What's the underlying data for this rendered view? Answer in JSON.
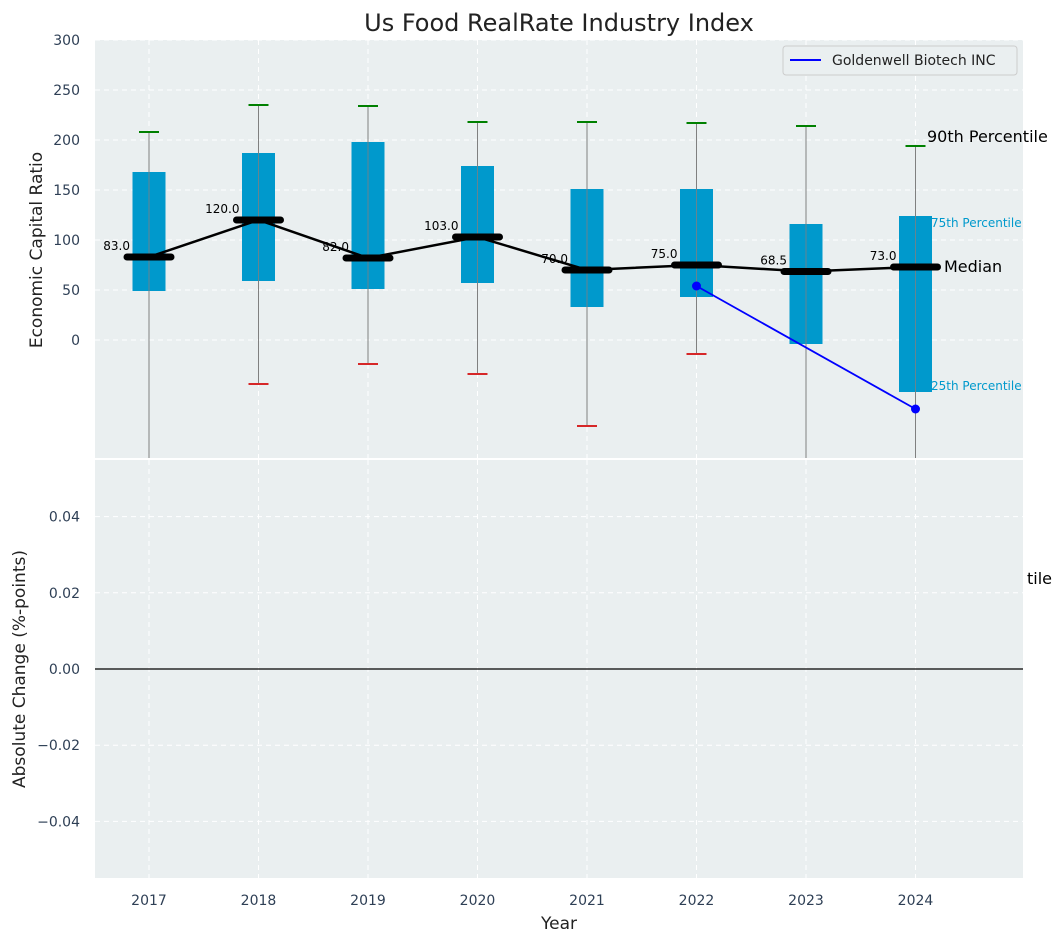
{
  "chart_data": [
    {
      "type": "box",
      "title": "Us Food RealRate Industry Index",
      "xlabel": "",
      "ylabel": "Economic Capital Ratio",
      "ylim": [
        -118,
        300
      ],
      "yticks": [
        0,
        50,
        100,
        150,
        200,
        250,
        300
      ],
      "grid": true,
      "categories": [
        "2017",
        "2018",
        "2019",
        "2020",
        "2021",
        "2022",
        "2023",
        "2024"
      ],
      "p10": [
        null,
        -44,
        -24,
        -34,
        -86,
        -14,
        null,
        null
      ],
      "p25": [
        49,
        59,
        51,
        57,
        33,
        43,
        -4,
        -52
      ],
      "median": [
        83.0,
        120.0,
        82.0,
        103.0,
        70.0,
        75.0,
        68.5,
        73.0
      ],
      "p75": [
        168,
        187,
        198,
        174,
        151,
        151,
        116,
        124
      ],
      "p90": [
        208,
        235,
        234,
        218,
        218,
        217,
        214,
        194
      ],
      "median_labels": [
        "83.0",
        "120.0",
        "82.0",
        "103.0",
        "70.0",
        "75.0",
        "68.5",
        "73.0"
      ],
      "company_series": {
        "name": "Goldenwell Biotech INC",
        "x": [
          "2022",
          "2024"
        ],
        "values": [
          54,
          -69
        ],
        "color": "#0000ff"
      },
      "legend": {
        "position": "top-right",
        "entries": [
          "Goldenwell Biotech INC"
        ]
      },
      "annotations": {
        "p90": "90th Percentile",
        "p75": "75th Percentile",
        "median": "Median",
        "p25": "25th Percentile"
      },
      "colors": {
        "box": "#0099cc",
        "median_line": "#000000",
        "whisker": "#808080",
        "p90_cap": "#008000",
        "p10_cap": "#d62728",
        "background": "#eaeff0"
      }
    },
    {
      "type": "line",
      "xlabel": "Year",
      "ylabel": "Absolute Change (%-points)",
      "ylim": [
        -0.055,
        0.055
      ],
      "yticks": [
        -0.04,
        -0.02,
        0.0,
        0.02,
        0.04
      ],
      "ytick_labels": [
        "−0.04",
        "−0.02",
        "0.00",
        "0.02",
        "0.04"
      ],
      "categories": [
        "2017",
        "2018",
        "2019",
        "2020",
        "2021",
        "2022",
        "2023",
        "2024"
      ],
      "zero_line": true,
      "grid": true,
      "overflow_text": "tile"
    }
  ]
}
